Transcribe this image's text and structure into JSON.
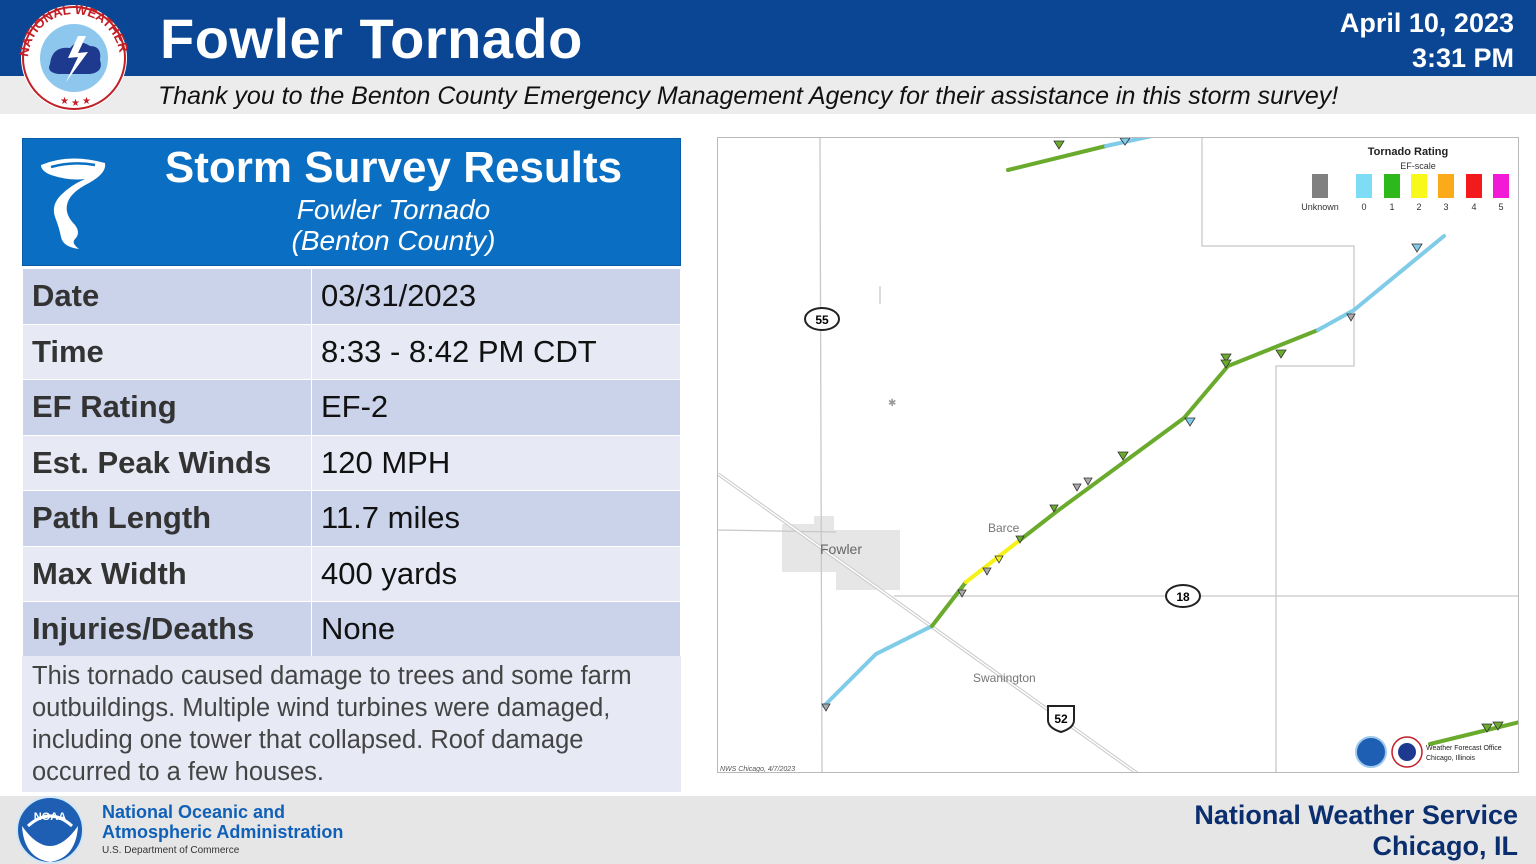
{
  "header": {
    "title": "Fowler Tornado",
    "date": "April 10, 2023",
    "time": "3:31 PM",
    "subtitle": "Thank you to the Benton County Emergency Management Agency for their assistance in this storm survey!",
    "logo_text": "NATIONAL WEATHER SERVICE",
    "logo_icon": "nws-logo-icon"
  },
  "results": {
    "title": "Storm Survey Results",
    "subtitle1": "Fowler Tornado",
    "subtitle2": "(Benton County)",
    "icon": "tornado-icon",
    "rows": [
      {
        "label": "Date",
        "value": "03/31/2023"
      },
      {
        "label": "Time",
        "value": "8:33 - 8:42 PM CDT"
      },
      {
        "label": "EF Rating",
        "value": "EF-2"
      },
      {
        "label": "Est. Peak Winds",
        "value": "120 MPH"
      },
      {
        "label": "Path Length",
        "value": "11.7 miles"
      },
      {
        "label": "Max Width",
        "value": "400 yards"
      },
      {
        "label": "Injuries/Deaths",
        "value": "None"
      }
    ],
    "narrative": "This tornado caused damage to trees and some farm outbuildings. Multiple wind turbines were damaged, including one tower that collapsed. Roof damage occurred to a few houses."
  },
  "map": {
    "legend": {
      "title": "Tornado Rating",
      "subtitle": "EF-scale",
      "items": [
        {
          "label": "Unknown",
          "color": "#808080"
        },
        {
          "label": "0",
          "color": "#7fdcf5"
        },
        {
          "label": "1",
          "color": "#2db81c"
        },
        {
          "label": "2",
          "color": "#f8f81a"
        },
        {
          "label": "3",
          "color": "#fbab1a"
        },
        {
          "label": "4",
          "color": "#f21a1a"
        },
        {
          "label": "5",
          "color": "#f21ad6"
        }
      ]
    },
    "places": {
      "fowler": "Fowler",
      "barce": "Barce",
      "swanington": "Swanington"
    },
    "routes": {
      "r55": "55",
      "r18": "18",
      "r52": "52"
    },
    "credit": "NWS Chicago, 4/7/2023",
    "office_line1": "Weather Forecast Office",
    "office_line2": "Chicago, Illinois",
    "colors": {
      "ef0": "#7fcbe8",
      "ef1": "#6aab2e",
      "ef2": "#f5f21a",
      "roads": "#c8c8c8",
      "town": "#e6e6e6"
    }
  },
  "footer": {
    "noaa_line1": "National Oceanic and",
    "noaa_line2": "Atmospheric Administration",
    "noaa_dept": "U.S. Department of Commerce",
    "nws_line1": "National Weather Service",
    "nws_line2": "Chicago, IL",
    "logo_text": "NOAA"
  }
}
